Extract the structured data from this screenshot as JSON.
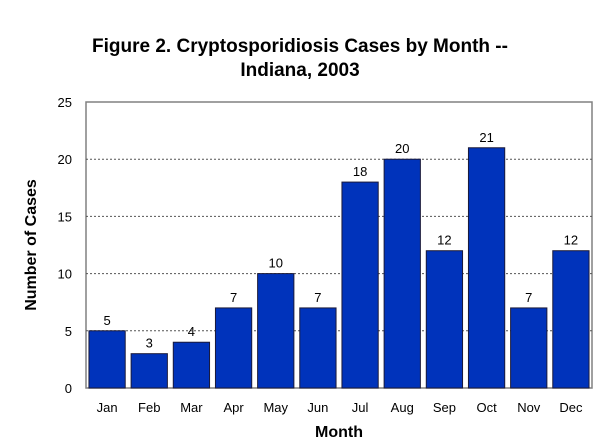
{
  "chart_data": {
    "type": "bar",
    "title_line1": "Figure 2. Cryptosporidiosis Cases by Month --",
    "title_line2": "Indiana, 2003",
    "xlabel": "Month",
    "ylabel": "Number of Cases",
    "categories": [
      "Jan",
      "Feb",
      "Mar",
      "Apr",
      "May",
      "Jun",
      "Jul",
      "Aug",
      "Sep",
      "Oct",
      "Nov",
      "Dec"
    ],
    "values": [
      5,
      3,
      4,
      7,
      10,
      7,
      18,
      20,
      12,
      21,
      7,
      12
    ],
    "ylim": [
      0,
      25
    ],
    "yticks": [
      0,
      5,
      10,
      15,
      20,
      25
    ],
    "grid": true,
    "bar_color": "#0033BB"
  }
}
